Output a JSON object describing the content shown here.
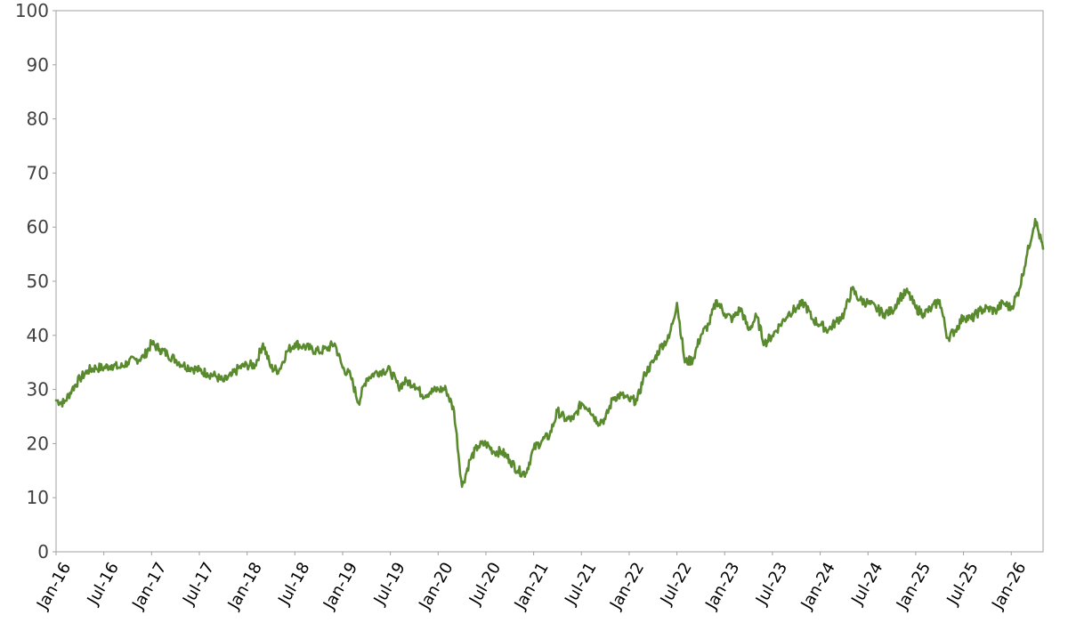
{
  "chart_data": {
    "type": "line",
    "title": "",
    "xlabel": "",
    "ylabel": "",
    "ylim": [
      0,
      100
    ],
    "xlim": [
      "2016-01",
      "2026-05"
    ],
    "y_ticks": [
      0,
      10,
      20,
      30,
      40,
      50,
      60,
      70,
      80,
      90,
      100
    ],
    "x_ticks": [
      {
        "label": "Jan-16",
        "date": "2016-01"
      },
      {
        "label": "Jul-16",
        "date": "2016-07"
      },
      {
        "label": "Jan-17",
        "date": "2017-01"
      },
      {
        "label": "Jul-17",
        "date": "2017-07"
      },
      {
        "label": "Jan-18",
        "date": "2018-01"
      },
      {
        "label": "Jul-18",
        "date": "2018-07"
      },
      {
        "label": "Jan-19",
        "date": "2019-01"
      },
      {
        "label": "Jul-19",
        "date": "2019-07"
      },
      {
        "label": "Jan-20",
        "date": "2020-01"
      },
      {
        "label": "Jul-20",
        "date": "2020-07"
      },
      {
        "label": "Jan-21",
        "date": "2021-01"
      },
      {
        "label": "Jul-21",
        "date": "2021-07"
      },
      {
        "label": "Jan-22",
        "date": "2022-01"
      },
      {
        "label": "Jul-22",
        "date": "2022-07"
      },
      {
        "label": "Jan-23",
        "date": "2023-01"
      },
      {
        "label": "Jul-23",
        "date": "2023-07"
      },
      {
        "label": "Jan-24",
        "date": "2024-01"
      },
      {
        "label": "Jul-24",
        "date": "2024-07"
      },
      {
        "label": "Jan-25",
        "date": "2025-01"
      },
      {
        "label": "Jul-25",
        "date": "2025-07"
      },
      {
        "label": "Jan-26",
        "date": "2026-01"
      }
    ],
    "grid": false,
    "legend": "none",
    "line_color": "#5a8a2e",
    "series": [
      {
        "points": [
          [
            "2016-01",
            28
          ],
          [
            "2016-02",
            27.5
          ],
          [
            "2016-03",
            30
          ],
          [
            "2016-04",
            32
          ],
          [
            "2016-05",
            33.5
          ],
          [
            "2016-06",
            34
          ],
          [
            "2016-07",
            34
          ],
          [
            "2016-08",
            34.5
          ],
          [
            "2016-09",
            34
          ],
          [
            "2016-10",
            35
          ],
          [
            "2016-11",
            35.5
          ],
          [
            "2016-12",
            36
          ],
          [
            "2017-01",
            38.5
          ],
          [
            "2017-02",
            37.5
          ],
          [
            "2017-03",
            36.5
          ],
          [
            "2017-04",
            35.5
          ],
          [
            "2017-05",
            34.5
          ],
          [
            "2017-06",
            34
          ],
          [
            "2017-07",
            33.5
          ],
          [
            "2017-08",
            33
          ],
          [
            "2017-09",
            32.5
          ],
          [
            "2017-10",
            31.5
          ],
          [
            "2017-11",
            32.5
          ],
          [
            "2017-12",
            34
          ],
          [
            "2018-01",
            34.5
          ],
          [
            "2018-02",
            34.5
          ],
          [
            "2018-03",
            38.5
          ],
          [
            "2018-04",
            34
          ],
          [
            "2018-05",
            33.5
          ],
          [
            "2018-06",
            37
          ],
          [
            "2018-07",
            38.5
          ],
          [
            "2018-08",
            38
          ],
          [
            "2018-09",
            37.5
          ],
          [
            "2018-10",
            37
          ],
          [
            "2018-11",
            37.5
          ],
          [
            "2018-12",
            38.5
          ],
          [
            "2019-01",
            34
          ],
          [
            "2019-02",
            32.5
          ],
          [
            "2019-03",
            27.5
          ],
          [
            "2019-04",
            32
          ],
          [
            "2019-05",
            33
          ],
          [
            "2019-06",
            33.5
          ],
          [
            "2019-07",
            33.5
          ],
          [
            "2019-08",
            30.5
          ],
          [
            "2019-09",
            31.5
          ],
          [
            "2019-10",
            31
          ],
          [
            "2019-11",
            29
          ],
          [
            "2019-12",
            29.5
          ],
          [
            "2020-01",
            30
          ],
          [
            "2020-02",
            30
          ],
          [
            "2020-03",
            26
          ],
          [
            "2020-04",
            12
          ],
          [
            "2020-05",
            17
          ],
          [
            "2020-06",
            19.5
          ],
          [
            "2020-07",
            20
          ],
          [
            "2020-08",
            18.5
          ],
          [
            "2020-09",
            18.5
          ],
          [
            "2020-10",
            17
          ],
          [
            "2020-11",
            15
          ],
          [
            "2020-12",
            14.5
          ],
          [
            "2021-01",
            19
          ],
          [
            "2021-02",
            20.5
          ],
          [
            "2021-03",
            21.5
          ],
          [
            "2021-04",
            26
          ],
          [
            "2021-05",
            24.5
          ],
          [
            "2021-06",
            24.5
          ],
          [
            "2021-07",
            27.5
          ],
          [
            "2021-08",
            26.5
          ],
          [
            "2021-09",
            24
          ],
          [
            "2021-10",
            24.5
          ],
          [
            "2021-11",
            28.5
          ],
          [
            "2021-12",
            29
          ],
          [
            "2022-01",
            28
          ],
          [
            "2022-02",
            28
          ],
          [
            "2022-03",
            33
          ],
          [
            "2022-04",
            35
          ],
          [
            "2022-05",
            38
          ],
          [
            "2022-06",
            39.5
          ],
          [
            "2022-07",
            46
          ],
          [
            "2022-08",
            35
          ],
          [
            "2022-09",
            35.5
          ],
          [
            "2022-10",
            40
          ],
          [
            "2022-11",
            42
          ],
          [
            "2022-12",
            46.5
          ],
          [
            "2023-01",
            44
          ],
          [
            "2023-02",
            43
          ],
          [
            "2023-03",
            45
          ],
          [
            "2023-04",
            41
          ],
          [
            "2023-05",
            43.5
          ],
          [
            "2023-06",
            38.5
          ],
          [
            "2023-07",
            40
          ],
          [
            "2023-08",
            42
          ],
          [
            "2023-09",
            44
          ],
          [
            "2023-10",
            45
          ],
          [
            "2023-11",
            46
          ],
          [
            "2023-12",
            43
          ],
          [
            "2024-01",
            42
          ],
          [
            "2024-02",
            41
          ],
          [
            "2024-03",
            42.5
          ],
          [
            "2024-04",
            44
          ],
          [
            "2024-05",
            48.5
          ],
          [
            "2024-06",
            46.5
          ],
          [
            "2024-07",
            46
          ],
          [
            "2024-08",
            45
          ],
          [
            "2024-09",
            44
          ],
          [
            "2024-10",
            44.5
          ],
          [
            "2024-11",
            47
          ],
          [
            "2024-12",
            48
          ],
          [
            "2025-01",
            45
          ],
          [
            "2025-02",
            44
          ],
          [
            "2025-03",
            45
          ],
          [
            "2025-04",
            46.5
          ],
          [
            "2025-05",
            39.5
          ],
          [
            "2025-06",
            41
          ],
          [
            "2025-07",
            43.5
          ],
          [
            "2025-08",
            43
          ],
          [
            "2025-09",
            44.5
          ],
          [
            "2025-10",
            45
          ],
          [
            "2025-11",
            44.5
          ],
          [
            "2025-12",
            46
          ],
          [
            "2026-01",
            45
          ],
          [
            "2026-02",
            48.5
          ],
          [
            "2026-03",
            55
          ],
          [
            "2026-04",
            61.5
          ],
          [
            "2026-05",
            56
          ]
        ]
      }
    ]
  }
}
